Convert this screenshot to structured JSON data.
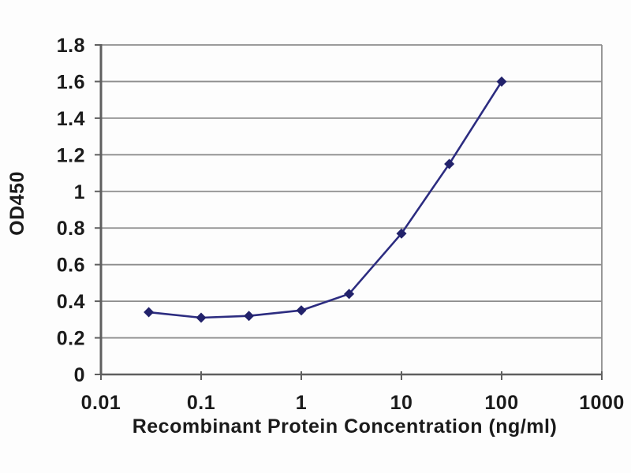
{
  "chart_data": {
    "type": "line",
    "title": "",
    "xlabel": "Recombinant Protein Concentration (ng/ml)",
    "ylabel": "OD450",
    "x_scale": "log",
    "xlim": [
      0.01,
      1000
    ],
    "ylim": [
      0,
      1.8
    ],
    "x_ticks": [
      0.01,
      0.1,
      1,
      10,
      100,
      1000
    ],
    "x_tick_labels": [
      "0.01",
      "0.1",
      "1",
      "10",
      "100",
      "1000"
    ],
    "y_ticks": [
      0,
      0.2,
      0.4,
      0.6,
      0.8,
      1,
      1.2,
      1.4,
      1.6,
      1.8
    ],
    "y_tick_labels": [
      "0",
      "0.2",
      "0.4",
      "0.6",
      "0.8",
      "1",
      "1.2",
      "1.4",
      "1.6",
      "1.8"
    ],
    "grid": "horizontal",
    "legend": "none",
    "series": [
      {
        "name": "OD450",
        "marker": "diamond",
        "color": "#2c2c80",
        "marker_color": "#22226b",
        "points": [
          {
            "x": 0.03,
            "y": 0.34
          },
          {
            "x": 0.1,
            "y": 0.31
          },
          {
            "x": 0.3,
            "y": 0.32
          },
          {
            "x": 1,
            "y": 0.35
          },
          {
            "x": 3,
            "y": 0.44
          },
          {
            "x": 10,
            "y": 0.77
          },
          {
            "x": 30,
            "y": 1.15
          },
          {
            "x": 100,
            "y": 1.6
          }
        ]
      }
    ],
    "colors": {
      "line": "#2c2c80",
      "marker": "#22226b",
      "gridline": "#8d8d8d",
      "frame": "#8d8d8d",
      "axis": "#5f5f5f",
      "text": "#1b1b1b",
      "background": "#fdfdfd"
    }
  }
}
